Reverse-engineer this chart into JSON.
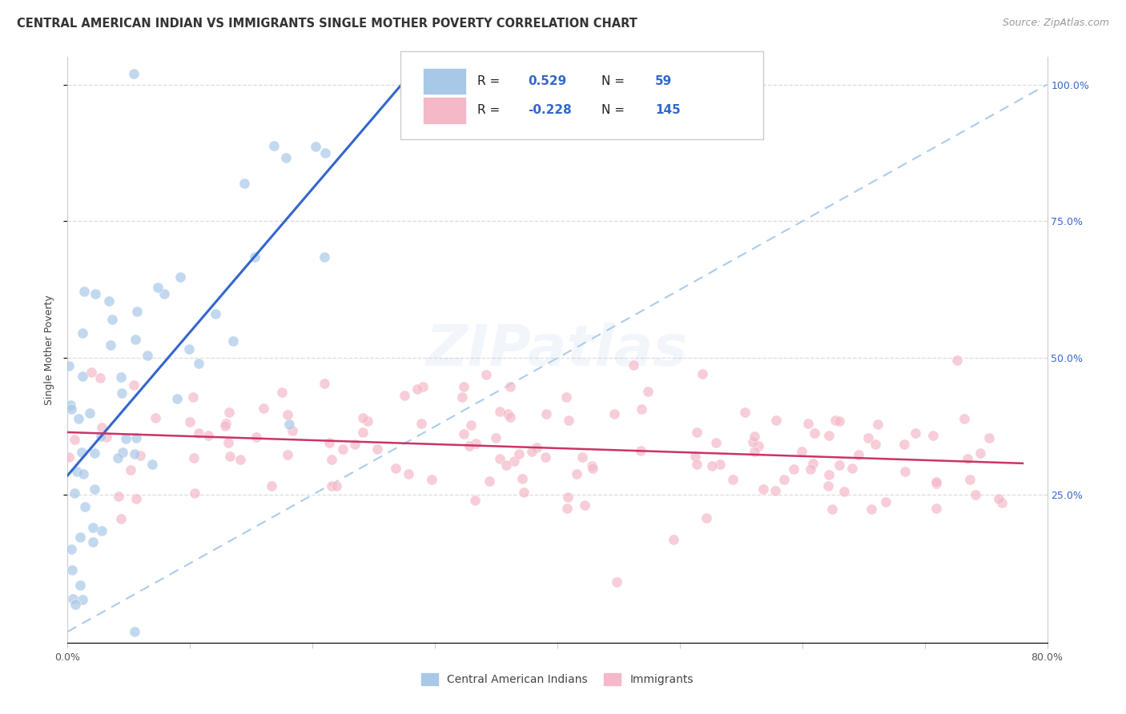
{
  "title": "CENTRAL AMERICAN INDIAN VS IMMIGRANTS SINGLE MOTHER POVERTY CORRELATION CHART",
  "source": "Source: ZipAtlas.com",
  "ylabel": "Single Mother Poverty",
  "right_yticks": [
    "100.0%",
    "75.0%",
    "50.0%",
    "25.0%"
  ],
  "right_ytick_vals": [
    1.0,
    0.75,
    0.5,
    0.25
  ],
  "watermark": "ZIPatlas",
  "blue_color": "#a8c8e8",
  "pink_color": "#f4b8c8",
  "line_blue": "#3366cc",
  "line_pink": "#cc3366",
  "trend_dashed_color": "#aaccee",
  "xlim": [
    0.0,
    0.8
  ],
  "ylim": [
    -0.02,
    1.05
  ],
  "blue_R": 0.529,
  "blue_N": 59,
  "pink_R": -0.228,
  "pink_N": 145,
  "background_color": "#ffffff",
  "grid_color": "#dddddd",
  "title_fontsize": 10.5,
  "source_fontsize": 9,
  "label_fontsize": 9,
  "legend_fontsize": 11,
  "watermark_fontsize": 52,
  "watermark_alpha": 0.1,
  "watermark_color": "#88aadd",
  "scatter_size": 90,
  "scatter_alpha": 0.7
}
